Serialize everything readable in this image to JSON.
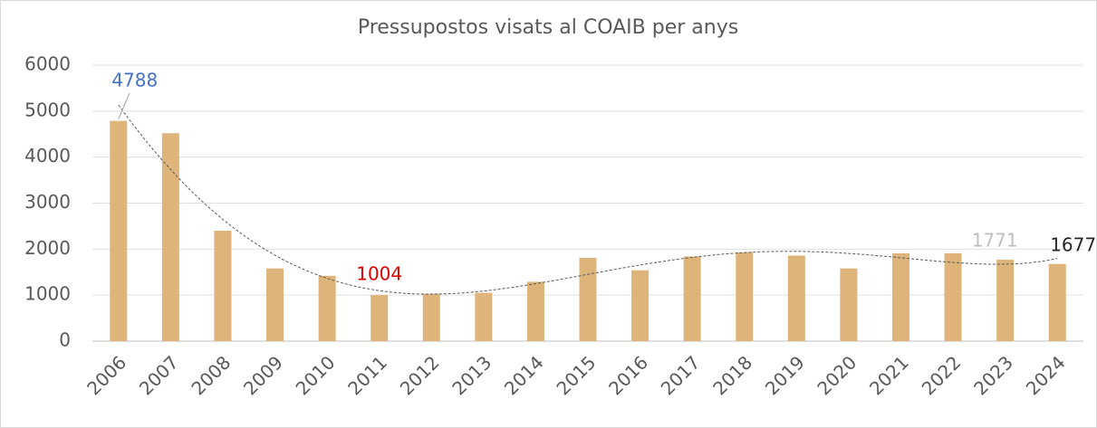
{
  "chart_data": {
    "type": "bar",
    "title": "Pressupostos visats al COAIB per anys",
    "categories": [
      "2006",
      "2007",
      "2008",
      "2009",
      "2010",
      "2011",
      "2012",
      "2013",
      "2014",
      "2015",
      "2016",
      "2017",
      "2018",
      "2019",
      "2020",
      "2021",
      "2022",
      "2023",
      "2024"
    ],
    "values": [
      4788,
      4520,
      2400,
      1580,
      1420,
      1004,
      1030,
      1050,
      1290,
      1810,
      1540,
      1840,
      1930,
      1860,
      1580,
      1910,
      1910,
      1771,
      1677
    ],
    "value_labels": [
      "4788",
      null,
      null,
      null,
      null,
      "1004",
      null,
      null,
      null,
      null,
      null,
      null,
      null,
      null,
      null,
      null,
      null,
      "1771",
      "1677"
    ],
    "label_colors": [
      "#4472c4",
      null,
      null,
      null,
      null,
      "#e00000",
      null,
      null,
      null,
      null,
      null,
      null,
      null,
      null,
      null,
      null,
      null,
      "#bfbfbf",
      "#262626"
    ],
    "color": "#deb47a",
    "ylim": [
      0,
      6000
    ],
    "yticks": [
      0,
      1000,
      2000,
      3000,
      4000,
      5000,
      6000
    ],
    "grid": true,
    "trendline": {
      "type": "polynomial",
      "order": 5
    }
  }
}
